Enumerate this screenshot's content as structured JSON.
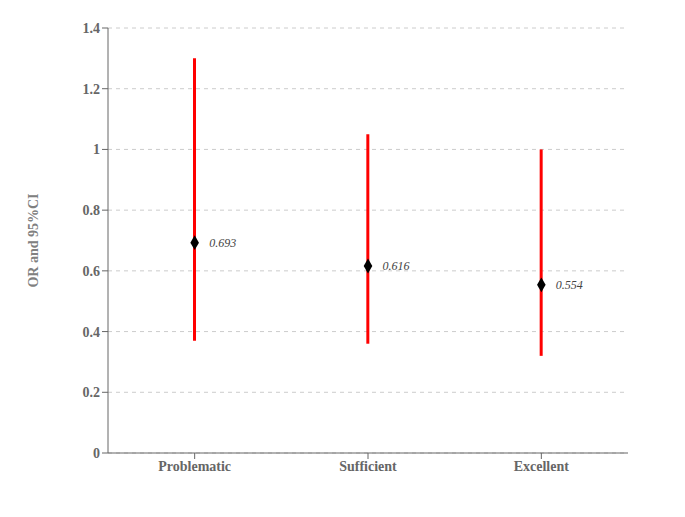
{
  "chart_data": {
    "type": "scatter",
    "ylabel": "OR and 95%CI",
    "categories": [
      "Problematic",
      "Sufficient",
      "Excellent"
    ],
    "series": [
      {
        "type": "range",
        "color": "#FF0000",
        "ci_lower": [
          0.37,
          0.36,
          0.32
        ],
        "ci_upper": [
          1.3,
          1.05,
          1.0
        ]
      },
      {
        "type": "scatter",
        "color": "#000000",
        "marker": "diamond",
        "values": [
          0.693,
          0.616,
          0.554
        ]
      }
    ],
    "ylim": [
      0,
      1.4
    ],
    "yticks": [
      0,
      0.2,
      0.4,
      0.6,
      0.8,
      1,
      1.2,
      1.4
    ],
    "grid": true,
    "data_labels": true
  }
}
